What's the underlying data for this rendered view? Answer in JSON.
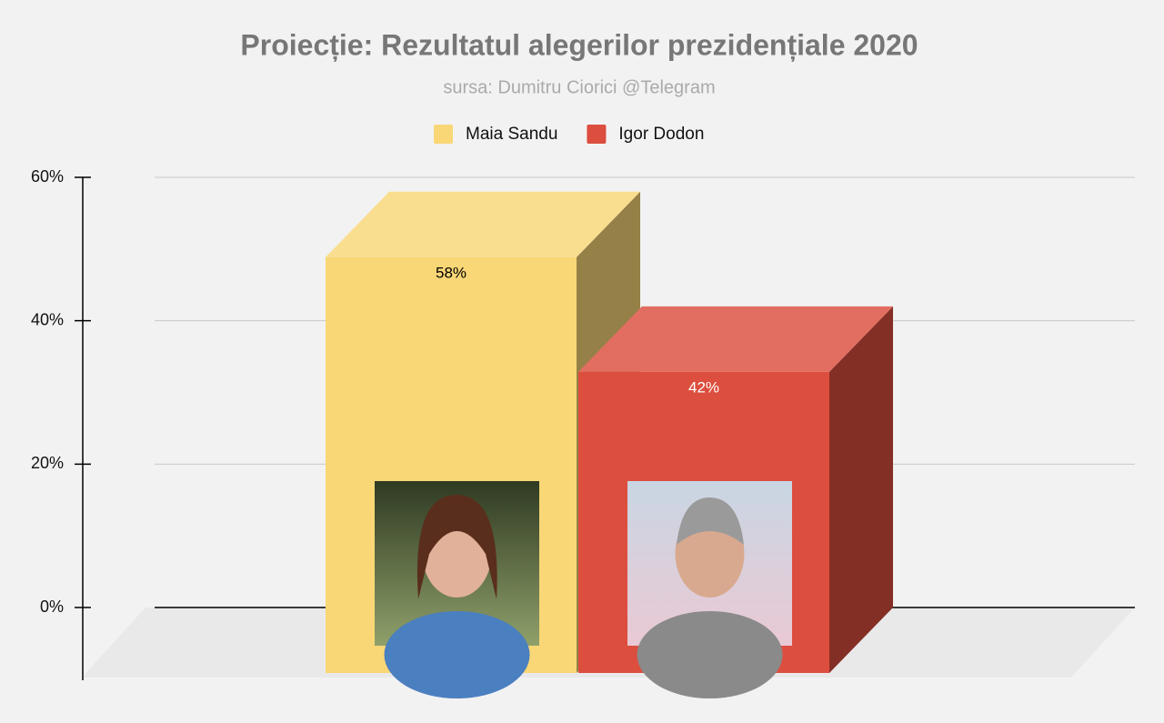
{
  "chart_data": {
    "type": "bar3d",
    "title": "Proiecție: Rezultatul alegerilor prezidențiale 2020",
    "subtitle": "sursa: Dumitru Ciorici @Telegram",
    "categories": [
      null
    ],
    "series": [
      {
        "name": "Maia Sandu",
        "color": "#f9d776",
        "values": [
          58
        ],
        "value_labels": [
          "58%"
        ]
      },
      {
        "name": "Igor Dodon",
        "color": "#dc4e3e",
        "values": [
          42
        ],
        "value_labels": [
          "42%"
        ]
      }
    ],
    "ylim": [
      0,
      60
    ],
    "yticks": [
      {
        "value": 0,
        "label": "0%"
      },
      {
        "value": 20,
        "label": "20%"
      },
      {
        "value": 40,
        "label": "40%"
      },
      {
        "value": 60,
        "label": "60%"
      }
    ],
    "grid": true
  }
}
